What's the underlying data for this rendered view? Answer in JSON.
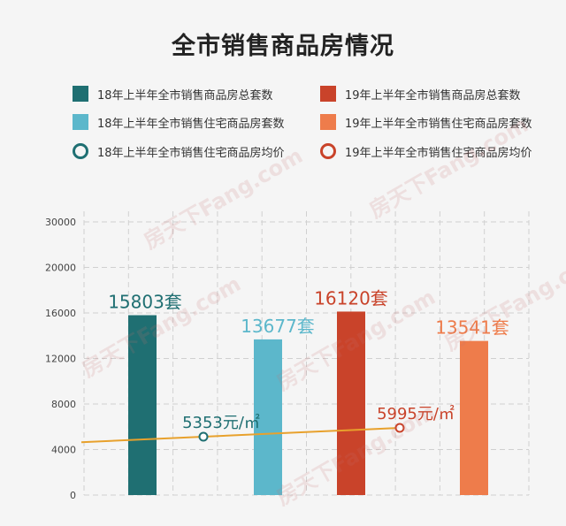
{
  "title": "全市销售商品房情况",
  "legend": [
    {
      "label": "18年上半年全市销售商品房总套数",
      "color": "#1f6f72",
      "shape": "square"
    },
    {
      "label": "19年上半年全市销售商品房总套数",
      "color": "#c9432a",
      "shape": "square"
    },
    {
      "label": "18年上半年全市销售住宅商品房套数",
      "color": "#5cb7cb",
      "shape": "square"
    },
    {
      "label": "19年上半年全市销售住宅商品房套数",
      "color": "#ee7c4b",
      "shape": "square"
    },
    {
      "label": "18年上半年全市销售住宅商品房均价",
      "color": "#1f6f72",
      "shape": "ring"
    },
    {
      "label": "19年上半年全市销售住宅商品房均价",
      "color": "#c9432a",
      "shape": "ring"
    }
  ],
  "watermark": "房天下Fang.com",
  "chart_data": {
    "type": "bar",
    "categories": [
      "18年上半年全市销售商品房总套数",
      "18年上半年全市销售住宅商品房套数",
      "19年上半年全市销售商品房总套数",
      "19年上半年全市销售住宅商品房套数"
    ],
    "values": [
      15803,
      13677,
      16120,
      13541
    ],
    "value_labels": [
      "15803套",
      "13677套",
      "16120套",
      "13541套"
    ],
    "colors": [
      "#1f6f72",
      "#5cb7cb",
      "#c9432a",
      "#ee7c4b"
    ],
    "y_ticks": [
      "0",
      "4000",
      "8000",
      "12000",
      "16000",
      "20000",
      "30000"
    ],
    "y_tick_values": [
      0,
      4000,
      8000,
      12000,
      16000,
      20000,
      30000
    ],
    "grid": true,
    "price_line": {
      "color": "#e8a12c",
      "points": [
        {
          "value": 5353,
          "label": "5353元/㎡",
          "label_color": "#1f6f72"
        },
        {
          "value": 5995,
          "label": "5995元/㎡",
          "label_color": "#c9432a"
        }
      ]
    }
  }
}
